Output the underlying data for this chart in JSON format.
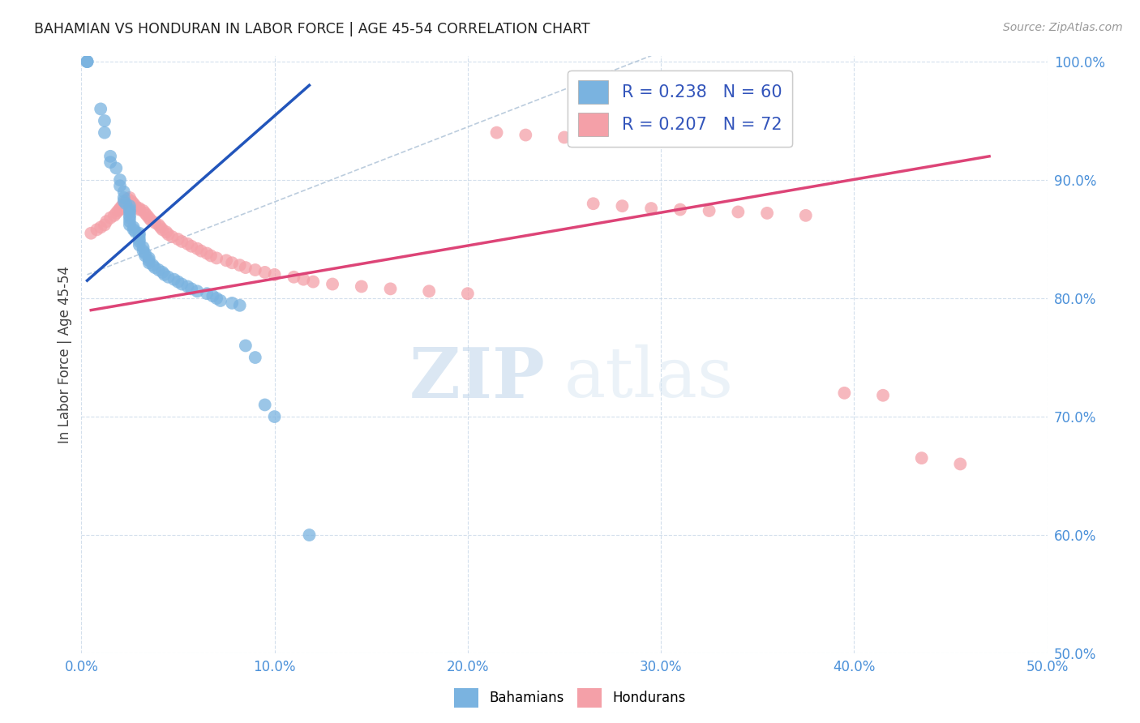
{
  "title": "BAHAMIAN VS HONDURAN IN LABOR FORCE | AGE 45-54 CORRELATION CHART",
  "source_text": "Source: ZipAtlas.com",
  "ylabel": "In Labor Force | Age 45-54",
  "xlim": [
    0.0,
    0.5
  ],
  "ylim": [
    0.5,
    1.005
  ],
  "xtick_labels": [
    "0.0%",
    "10.0%",
    "20.0%",
    "30.0%",
    "40.0%",
    "50.0%"
  ],
  "xtick_vals": [
    0.0,
    0.1,
    0.2,
    0.3,
    0.4,
    0.5
  ],
  "ytick_labels": [
    "50.0%",
    "60.0%",
    "70.0%",
    "80.0%",
    "90.0%",
    "100.0%"
  ],
  "ytick_vals": [
    0.5,
    0.6,
    0.7,
    0.8,
    0.9,
    1.0
  ],
  "bahamian_color": "#7ab3e0",
  "honduran_color": "#f4a0a8",
  "blue_line_color": "#2255bb",
  "pink_line_color": "#dd4477",
  "legend_blue_label": "R = 0.238   N = 60",
  "legend_pink_label": "R = 0.207   N = 72",
  "legend_label_bahamians": "Bahamians",
  "legend_label_hondurans": "Hondurans",
  "watermark_zip": "ZIP",
  "watermark_atlas": "atlas",
  "blue_line_x": [
    0.003,
    0.118
  ],
  "blue_line_y": [
    0.815,
    0.98
  ],
  "pink_line_x": [
    0.005,
    0.47
  ],
  "pink_line_y": [
    0.79,
    0.92
  ],
  "ref_line_x": [
    0.003,
    0.295
  ],
  "ref_line_y": [
    0.82,
    1.005
  ],
  "bahamian_x": [
    0.003,
    0.003,
    0.003,
    0.01,
    0.012,
    0.012,
    0.015,
    0.015,
    0.018,
    0.02,
    0.02,
    0.022,
    0.022,
    0.022,
    0.023,
    0.025,
    0.025,
    0.025,
    0.025,
    0.025,
    0.025,
    0.025,
    0.027,
    0.027,
    0.028,
    0.03,
    0.03,
    0.03,
    0.03,
    0.03,
    0.032,
    0.032,
    0.033,
    0.033,
    0.035,
    0.035,
    0.035,
    0.037,
    0.038,
    0.04,
    0.042,
    0.043,
    0.045,
    0.048,
    0.05,
    0.052,
    0.055,
    0.057,
    0.06,
    0.065,
    0.068,
    0.07,
    0.072,
    0.078,
    0.082,
    0.085,
    0.09,
    0.095,
    0.1,
    0.118
  ],
  "bahamian_y": [
    1.0,
    1.0,
    1.0,
    0.96,
    0.95,
    0.94,
    0.92,
    0.915,
    0.91,
    0.9,
    0.895,
    0.89,
    0.885,
    0.882,
    0.88,
    0.878,
    0.875,
    0.873,
    0.87,
    0.868,
    0.865,
    0.862,
    0.86,
    0.858,
    0.856,
    0.855,
    0.853,
    0.85,
    0.848,
    0.845,
    0.843,
    0.84,
    0.838,
    0.836,
    0.834,
    0.832,
    0.83,
    0.828,
    0.826,
    0.824,
    0.822,
    0.82,
    0.818,
    0.816,
    0.814,
    0.812,
    0.81,
    0.808,
    0.806,
    0.804,
    0.802,
    0.8,
    0.798,
    0.796,
    0.794,
    0.76,
    0.75,
    0.71,
    0.7,
    0.6
  ],
  "honduran_x": [
    0.005,
    0.008,
    0.01,
    0.012,
    0.013,
    0.015,
    0.017,
    0.018,
    0.019,
    0.02,
    0.02,
    0.021,
    0.022,
    0.023,
    0.024,
    0.025,
    0.026,
    0.027,
    0.028,
    0.03,
    0.03,
    0.032,
    0.033,
    0.034,
    0.035,
    0.036,
    0.038,
    0.04,
    0.041,
    0.042,
    0.044,
    0.045,
    0.047,
    0.05,
    0.052,
    0.055,
    0.057,
    0.06,
    0.062,
    0.065,
    0.067,
    0.07,
    0.075,
    0.078,
    0.082,
    0.085,
    0.09,
    0.095,
    0.1,
    0.11,
    0.115,
    0.12,
    0.13,
    0.145,
    0.16,
    0.18,
    0.2,
    0.215,
    0.23,
    0.25,
    0.265,
    0.28,
    0.295,
    0.31,
    0.325,
    0.34,
    0.355,
    0.375,
    0.395,
    0.415,
    0.435,
    0.455
  ],
  "honduran_y": [
    0.855,
    0.858,
    0.86,
    0.862,
    0.865,
    0.868,
    0.87,
    0.872,
    0.874,
    0.875,
    0.876,
    0.878,
    0.88,
    0.882,
    0.884,
    0.885,
    0.882,
    0.88,
    0.878,
    0.876,
    0.875,
    0.874,
    0.872,
    0.87,
    0.868,
    0.866,
    0.864,
    0.862,
    0.86,
    0.858,
    0.856,
    0.854,
    0.852,
    0.85,
    0.848,
    0.846,
    0.844,
    0.842,
    0.84,
    0.838,
    0.836,
    0.834,
    0.832,
    0.83,
    0.828,
    0.826,
    0.824,
    0.822,
    0.82,
    0.818,
    0.816,
    0.814,
    0.812,
    0.81,
    0.808,
    0.806,
    0.804,
    0.94,
    0.938,
    0.936,
    0.88,
    0.878,
    0.876,
    0.875,
    0.874,
    0.873,
    0.872,
    0.87,
    0.72,
    0.718,
    0.665,
    0.66
  ]
}
